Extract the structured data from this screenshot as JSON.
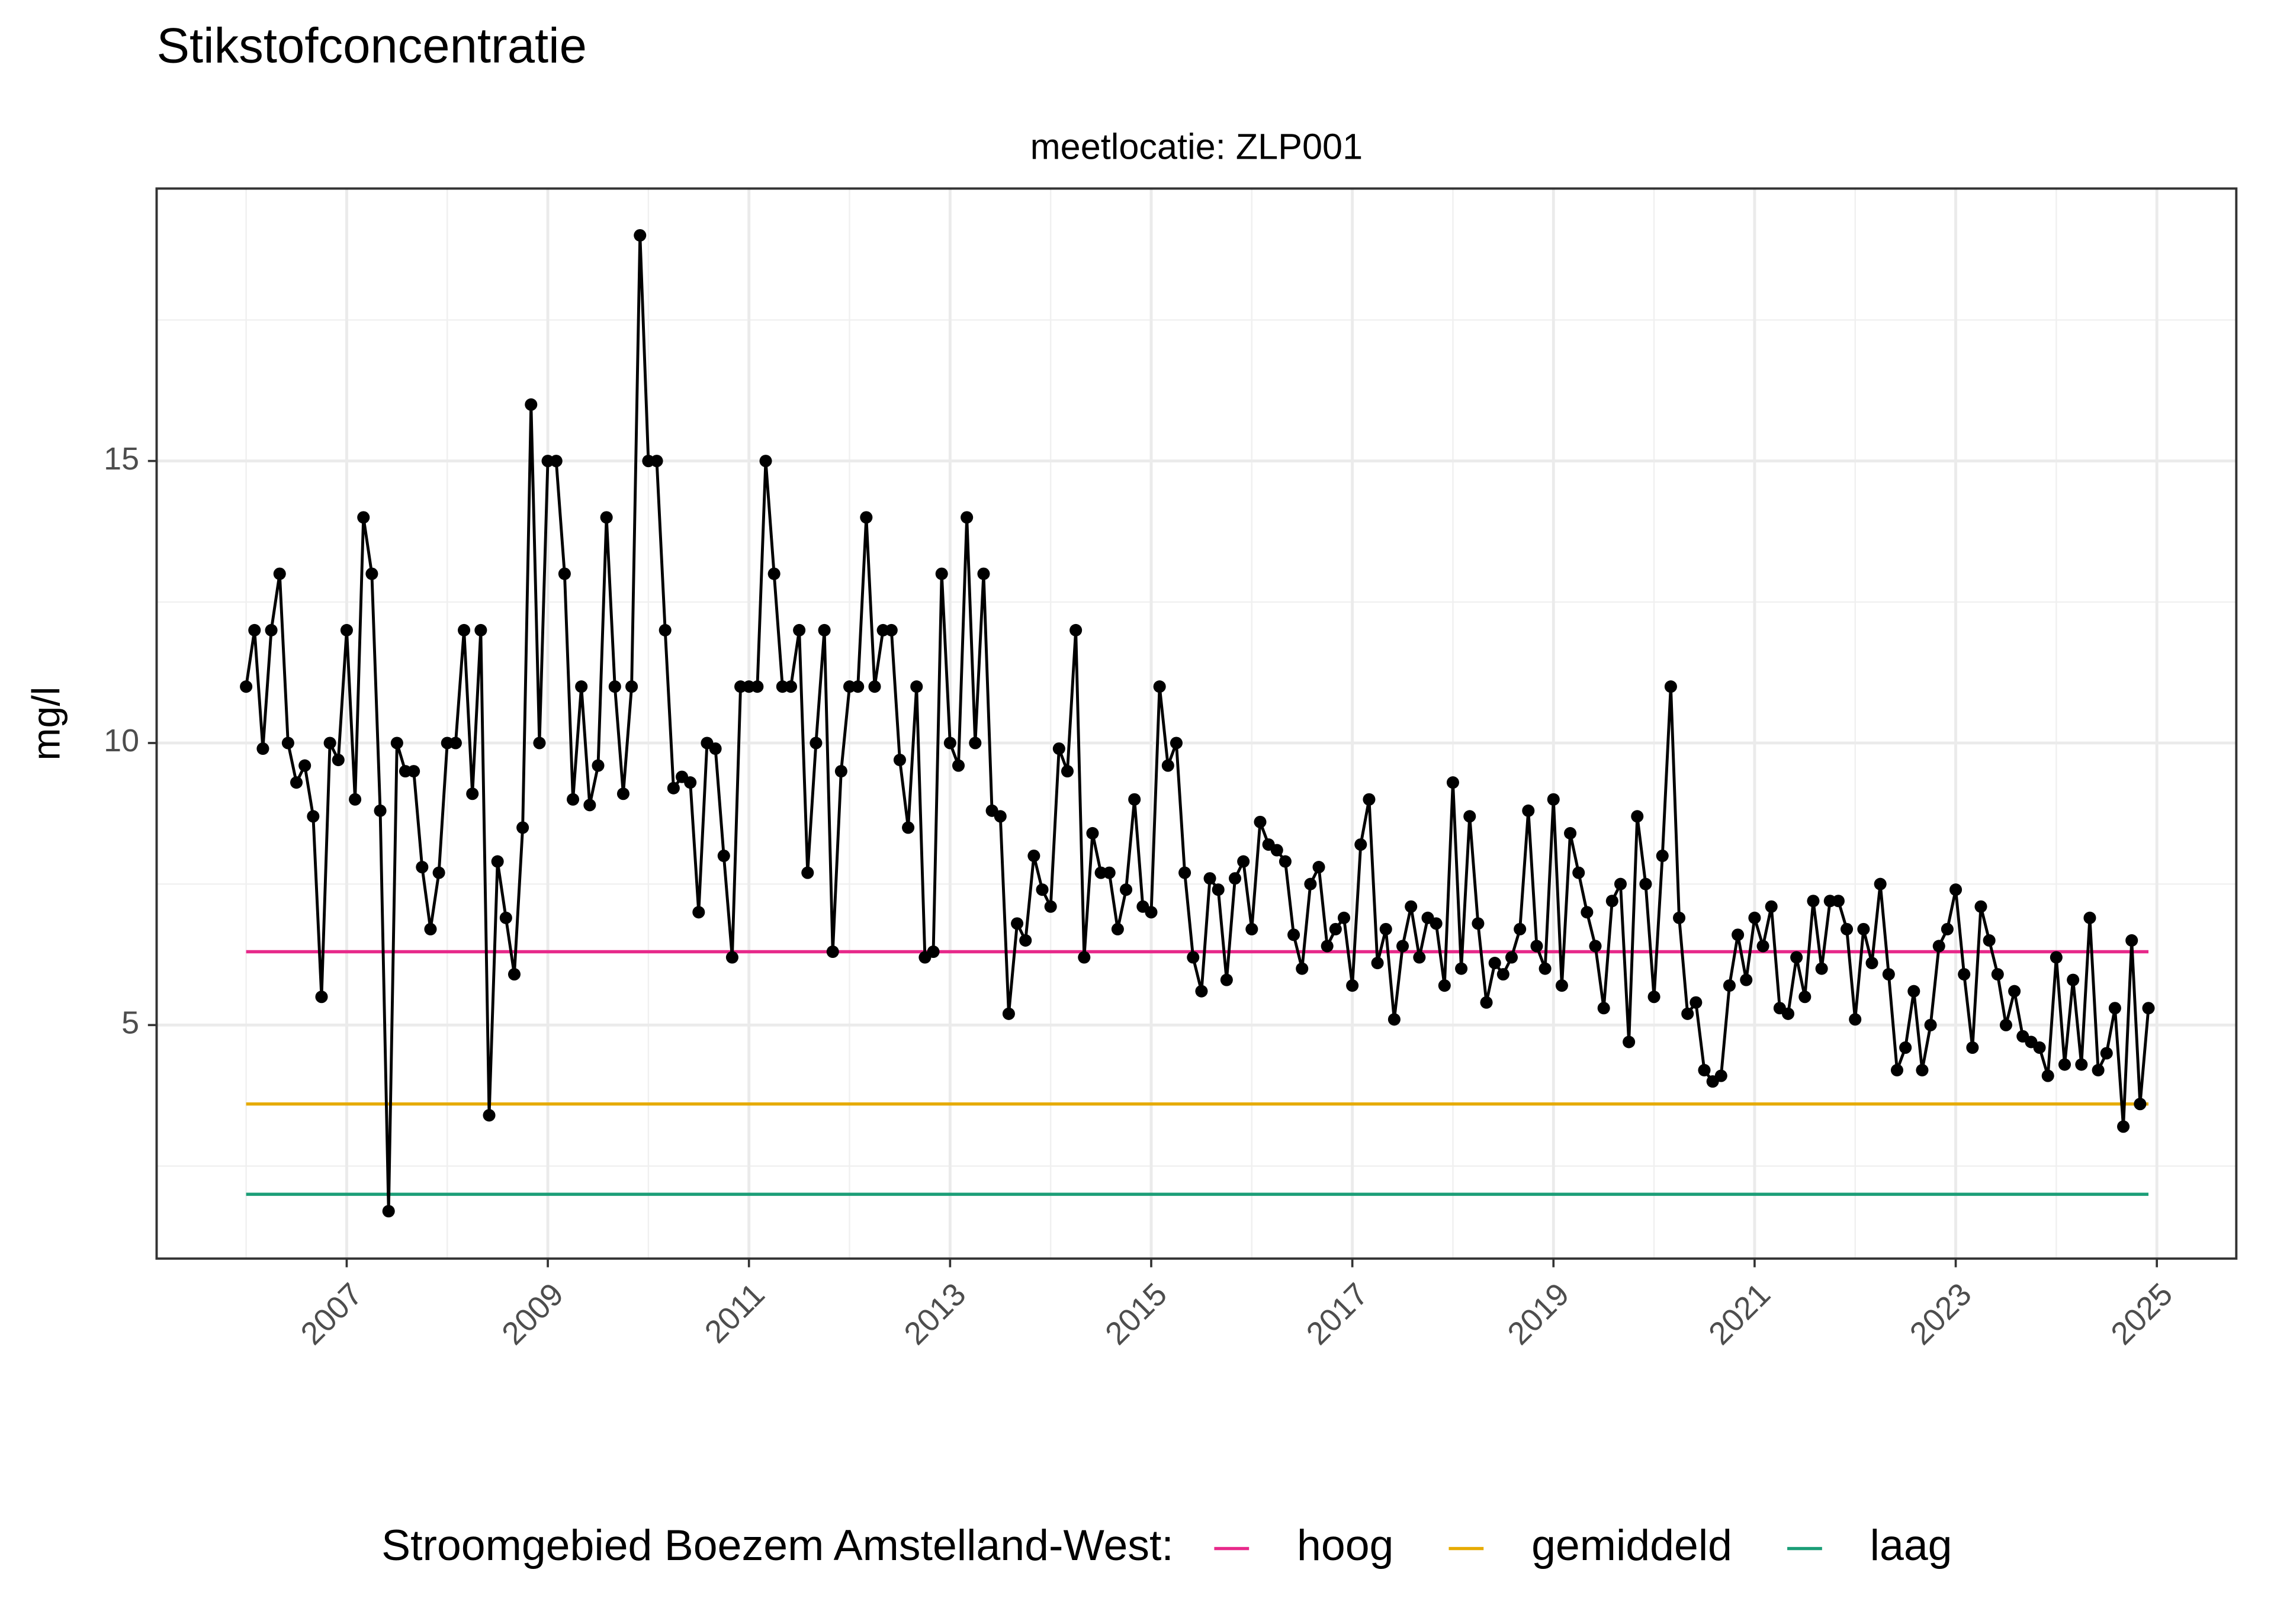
{
  "chart_data": {
    "type": "line",
    "title": "Stikstofconcentratie",
    "subtitle": "meetlocatie: ZLP001",
    "y_label": "mg/l",
    "legend_title": "Stroomgebied Boezem Amstelland-West:",
    "color": "#000000",
    "xlim": [
      2005.11,
      2025.79
    ],
    "xticks": [
      2007,
      2009,
      2011,
      2013,
      2015,
      2017,
      2019,
      2021,
      2023,
      2025
    ],
    "ylim": [
      0.86,
      19.83
    ],
    "yticks": [
      5,
      10,
      15
    ],
    "grid": true,
    "legend_position": "bottom",
    "reference_lines": [
      {
        "name": "hoog",
        "color": "#e7298a",
        "value": 6.3
      },
      {
        "name": "gemiddeld",
        "color": "#e6ab02",
        "value": 3.6
      },
      {
        "name": "laag",
        "color": "#1b9e77",
        "value": 2.0
      }
    ],
    "x": [
      "2006-01",
      "2006-02",
      "2006-03",
      "2006-04",
      "2006-05",
      "2006-06",
      "2006-07",
      "2006-08",
      "2006-09",
      "2006-10",
      "2006-11",
      "2006-12",
      "2007-01",
      "2007-02",
      "2007-03",
      "2007-04",
      "2007-05",
      "2007-06",
      "2007-07",
      "2007-08",
      "2007-09",
      "2007-10",
      "2007-11",
      "2007-12",
      "2008-01",
      "2008-02",
      "2008-03",
      "2008-04",
      "2008-05",
      "2008-06",
      "2008-07",
      "2008-08",
      "2008-09",
      "2008-10",
      "2008-11",
      "2008-12",
      "2009-01",
      "2009-02",
      "2009-03",
      "2009-04",
      "2009-05",
      "2009-06",
      "2009-07",
      "2009-08",
      "2009-09",
      "2009-10",
      "2009-11",
      "2009-12",
      "2010-01",
      "2010-02",
      "2010-03",
      "2010-04",
      "2010-05",
      "2010-06",
      "2010-07",
      "2010-08",
      "2010-09",
      "2010-10",
      "2010-11",
      "2010-12",
      "2011-01",
      "2011-02",
      "2011-03",
      "2011-04",
      "2011-05",
      "2011-06",
      "2011-07",
      "2011-08",
      "2011-09",
      "2011-10",
      "2011-11",
      "2011-12",
      "2012-01",
      "2012-02",
      "2012-03",
      "2012-04",
      "2012-05",
      "2012-06",
      "2012-07",
      "2012-08",
      "2012-09",
      "2012-10",
      "2012-11",
      "2012-12",
      "2013-01",
      "2013-02",
      "2013-03",
      "2013-04",
      "2013-05",
      "2013-06",
      "2013-07",
      "2013-08",
      "2013-09",
      "2013-10",
      "2013-11",
      "2013-12",
      "2014-01",
      "2014-02",
      "2014-03",
      "2014-04",
      "2014-05",
      "2014-06",
      "2014-07",
      "2014-08",
      "2014-09",
      "2014-10",
      "2014-11",
      "2014-12",
      "2015-01",
      "2015-02",
      "2015-03",
      "2015-04",
      "2015-05",
      "2015-06",
      "2015-07",
      "2015-08",
      "2015-09",
      "2015-10",
      "2015-11",
      "2015-12",
      "2016-01",
      "2016-02",
      "2016-03",
      "2016-04",
      "2016-05",
      "2016-06",
      "2016-07",
      "2016-08",
      "2016-09",
      "2016-10",
      "2016-11",
      "2016-12",
      "2017-01",
      "2017-02",
      "2017-03",
      "2017-04",
      "2017-05",
      "2017-06",
      "2017-07",
      "2017-08",
      "2017-09",
      "2017-10",
      "2017-11",
      "2017-12",
      "2018-01",
      "2018-02",
      "2018-03",
      "2018-04",
      "2018-05",
      "2018-06",
      "2018-07",
      "2018-08",
      "2018-09",
      "2018-10",
      "2018-11",
      "2018-12",
      "2019-01",
      "2019-02",
      "2019-03",
      "2019-04",
      "2019-05",
      "2019-06",
      "2019-07",
      "2019-08",
      "2019-09",
      "2019-10",
      "2019-11",
      "2019-12",
      "2020-01",
      "2020-02",
      "2020-03",
      "2020-04",
      "2020-05",
      "2020-06",
      "2020-07",
      "2020-08",
      "2020-09",
      "2020-10",
      "2020-11",
      "2020-12",
      "2021-01",
      "2021-02",
      "2021-03",
      "2021-04",
      "2021-05",
      "2021-06",
      "2021-07",
      "2021-08",
      "2021-09",
      "2021-10",
      "2021-11",
      "2021-12",
      "2022-01",
      "2022-02",
      "2022-03",
      "2022-04",
      "2022-05",
      "2022-06",
      "2022-07",
      "2022-08",
      "2022-09",
      "2022-10",
      "2022-11",
      "2022-12",
      "2023-01",
      "2023-02",
      "2023-03",
      "2023-04",
      "2023-05",
      "2023-06",
      "2023-07",
      "2023-08",
      "2023-09",
      "2023-10",
      "2023-11",
      "2023-12",
      "2024-01",
      "2024-02",
      "2024-03",
      "2024-04",
      "2024-05",
      "2024-06",
      "2024-07",
      "2024-08",
      "2024-09",
      "2024-10",
      "2024-11",
      "2024-12"
    ],
    "values": [
      11,
      12,
      9.9,
      12,
      13,
      10,
      9.3,
      9.6,
      8.7,
      5.5,
      10,
      9.7,
      12,
      9,
      14,
      13,
      8.8,
      1.7,
      10,
      9.5,
      9.5,
      7.8,
      6.7,
      7.7,
      10,
      10,
      12,
      9.1,
      12,
      3.4,
      7.9,
      6.9,
      5.9,
      8.5,
      16,
      10,
      15,
      15,
      13,
      9,
      11,
      8.9,
      9.6,
      14,
      11,
      9.1,
      11,
      19,
      15,
      15,
      12,
      9.2,
      9.4,
      9.3,
      7,
      10,
      9.9,
      8,
      6.2,
      11,
      11,
      11,
      15,
      13,
      11,
      11,
      12,
      7.7,
      10,
      12,
      6.3,
      9.5,
      11,
      11,
      14,
      11,
      12,
      12,
      9.7,
      8.5,
      11,
      6.2,
      6.3,
      13,
      10,
      9.6,
      14,
      10,
      13,
      8.8,
      8.7,
      5.2,
      6.8,
      6.5,
      8,
      7.4,
      7.1,
      9.9,
      9.5,
      12,
      6.2,
      8.4,
      7.7,
      7.7,
      6.7,
      7.4,
      9,
      7.1,
      7,
      11,
      9.6,
      10,
      7.7,
      6.2,
      5.6,
      7.6,
      7.4,
      5.8,
      7.6,
      7.9,
      6.7,
      8.6,
      8.2,
      8.1,
      7.9,
      6.6,
      6,
      7.5,
      7.8,
      6.4,
      6.7,
      6.9,
      5.7,
      8.2,
      9,
      6.1,
      6.7,
      5.1,
      6.4,
      7.1,
      6.2,
      6.9,
      6.8,
      5.7,
      9.3,
      6,
      8.7,
      6.8,
      5.4,
      6.1,
      5.9,
      6.2,
      6.7,
      8.8,
      6.4,
      6,
      9,
      5.7,
      8.4,
      7.7,
      7,
      6.4,
      5.3,
      7.2,
      7.5,
      4.7,
      8.7,
      7.5,
      5.5,
      8,
      11,
      6.9,
      5.2,
      5.4,
      4.2,
      4,
      4.1,
      5.7,
      6.6,
      5.8,
      6.9,
      6.4,
      7.1,
      5.3,
      5.2,
      6.2,
      5.5,
      7.2,
      6,
      7.2,
      7.2,
      6.7,
      5.1,
      6.7,
      6.1,
      7.5,
      5.9,
      4.2,
      4.6,
      5.6,
      4.2,
      5,
      6.4,
      6.7,
      7.4,
      5.9,
      4.6,
      7.1,
      6.5,
      5.9,
      5,
      5.6,
      4.8,
      4.7,
      4.6,
      4.1,
      6.2,
      4.3,
      5.8,
      4.3,
      6.9,
      4.2,
      4.5,
      5.3,
      3.2,
      6.5,
      3.6,
      5.3
    ]
  }
}
